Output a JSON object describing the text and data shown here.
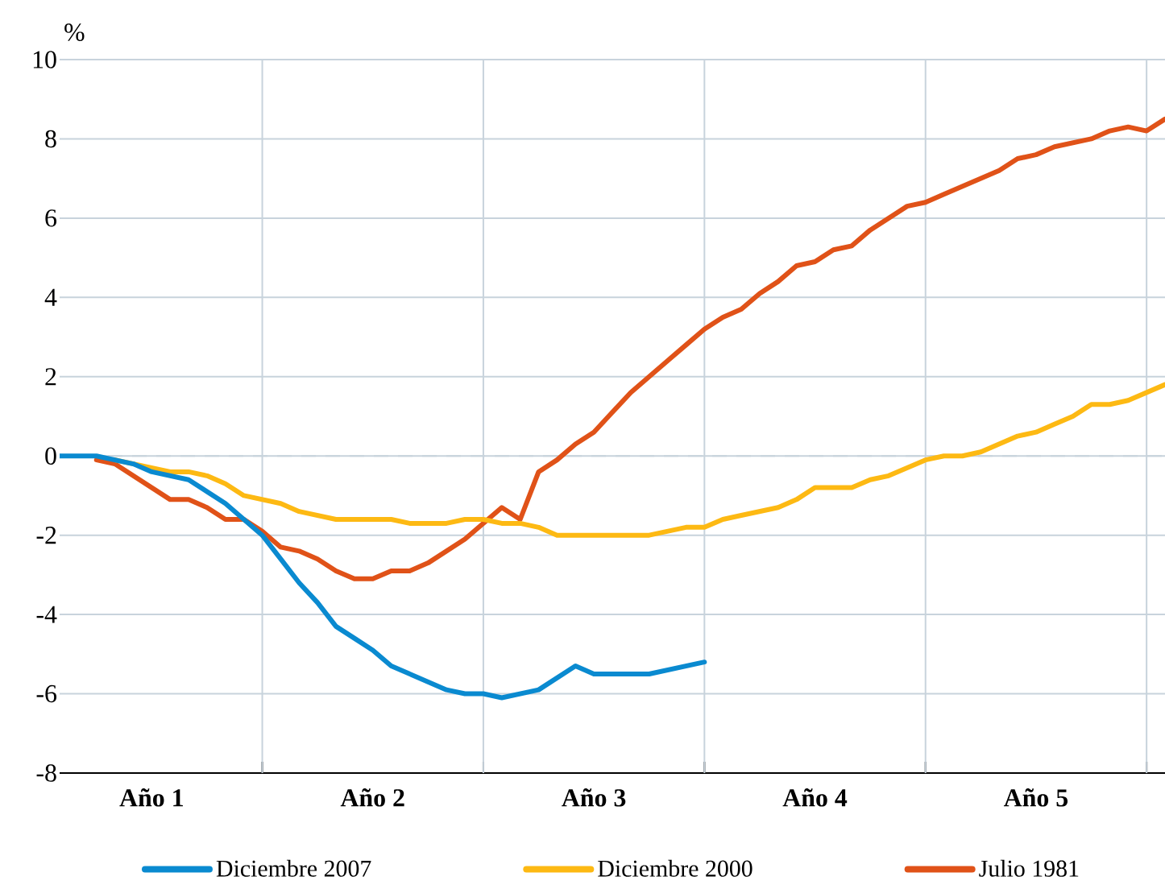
{
  "chart_data": {
    "type": "line",
    "ylabel": "%",
    "categories": [
      null,
      null,
      null,
      null,
      null,
      "Año 1",
      null,
      null,
      null,
      null,
      null,
      null,
      null,
      null,
      null,
      null,
      null,
      "Año 2",
      null,
      null,
      null,
      null,
      null,
      null,
      null,
      null,
      null,
      null,
      null,
      "Año 3",
      null,
      null,
      null,
      null,
      null,
      null,
      null,
      null,
      null,
      null,
      null,
      "Año 4",
      null,
      null,
      null,
      null,
      null,
      null,
      null,
      null,
      null,
      null,
      null,
      "Año 5",
      null,
      null,
      null,
      null,
      null,
      null,
      null
    ],
    "ylim": [
      -8,
      10
    ],
    "yticks": [
      -8,
      -6,
      -4,
      -2,
      0,
      2,
      4,
      6,
      8,
      10
    ],
    "grid": "y",
    "legend": "bottom",
    "marker": "none",
    "line_style": "solid",
    "ref_lines": [
      {
        "axis": "y",
        "value": 0,
        "color": "#c8d3dc",
        "line_style": "dashed"
      }
    ],
    "series": [
      {
        "name": "Diciembre 2007",
        "color": "#0a8ad0",
        "values": [
          0,
          0,
          0,
          -0.1,
          -0.2,
          -0.4,
          -0.5,
          -0.6,
          -0.9,
          -1.2,
          -1.6,
          -2.0,
          -2.6,
          -3.2,
          -3.7,
          -4.3,
          -4.6,
          -4.9,
          -5.3,
          -5.5,
          -5.7,
          -5.9,
          -6.0,
          -6.0,
          -6.1,
          -6.0,
          -5.9,
          -5.6,
          -5.3,
          -5.5,
          -5.5,
          -5.5,
          -5.5,
          -5.4,
          -5.3,
          -5.2,
          null,
          null,
          null,
          null,
          null,
          null,
          null,
          null,
          null,
          null,
          null,
          null,
          null,
          null,
          null,
          null,
          null,
          null,
          null,
          null,
          null,
          null,
          null,
          null,
          null
        ]
      },
      {
        "name": "Diciembre 2000",
        "color": "#fdb913",
        "values": [
          null,
          null,
          null,
          -0.1,
          -0.2,
          -0.3,
          -0.4,
          -0.4,
          -0.5,
          -0.7,
          -1.0,
          -1.1,
          -1.2,
          -1.4,
          -1.5,
          -1.6,
          -1.6,
          -1.6,
          -1.6,
          -1.7,
          -1.7,
          -1.7,
          -1.6,
          -1.6,
          -1.7,
          -1.7,
          -1.8,
          -2.0,
          -2.0,
          -2.0,
          -2.0,
          -2.0,
          -2.0,
          -1.9,
          -1.8,
          -1.8,
          -1.6,
          -1.5,
          -1.4,
          -1.3,
          -1.1,
          -0.8,
          -0.8,
          -0.8,
          -0.6,
          -0.5,
          -0.3,
          -0.1,
          0.0,
          0.0,
          0.1,
          0.3,
          0.5,
          0.6,
          0.8,
          1.0,
          1.3,
          1.3,
          1.4,
          1.6,
          1.8
        ]
      },
      {
        "name": "Julio 1981",
        "color": "#e05218",
        "values": [
          null,
          null,
          -0.1,
          -0.2,
          -0.5,
          -0.8,
          -1.1,
          -1.1,
          -1.3,
          -1.6,
          -1.6,
          -1.9,
          -2.3,
          -2.4,
          -2.6,
          -2.9,
          -3.1,
          -3.1,
          -2.9,
          -2.9,
          -2.7,
          -2.4,
          -2.1,
          -1.7,
          -1.3,
          -1.6,
          -0.4,
          -0.1,
          0.3,
          0.6,
          1.1,
          1.6,
          2.0,
          2.4,
          2.8,
          3.2,
          3.5,
          3.7,
          4.1,
          4.4,
          4.8,
          4.9,
          5.2,
          5.3,
          5.7,
          6.0,
          6.3,
          6.4,
          6.6,
          6.8,
          7.0,
          7.2,
          7.5,
          7.6,
          7.8,
          7.9,
          8.0,
          8.2,
          8.3,
          8.2,
          8.5
        ]
      }
    ]
  }
}
